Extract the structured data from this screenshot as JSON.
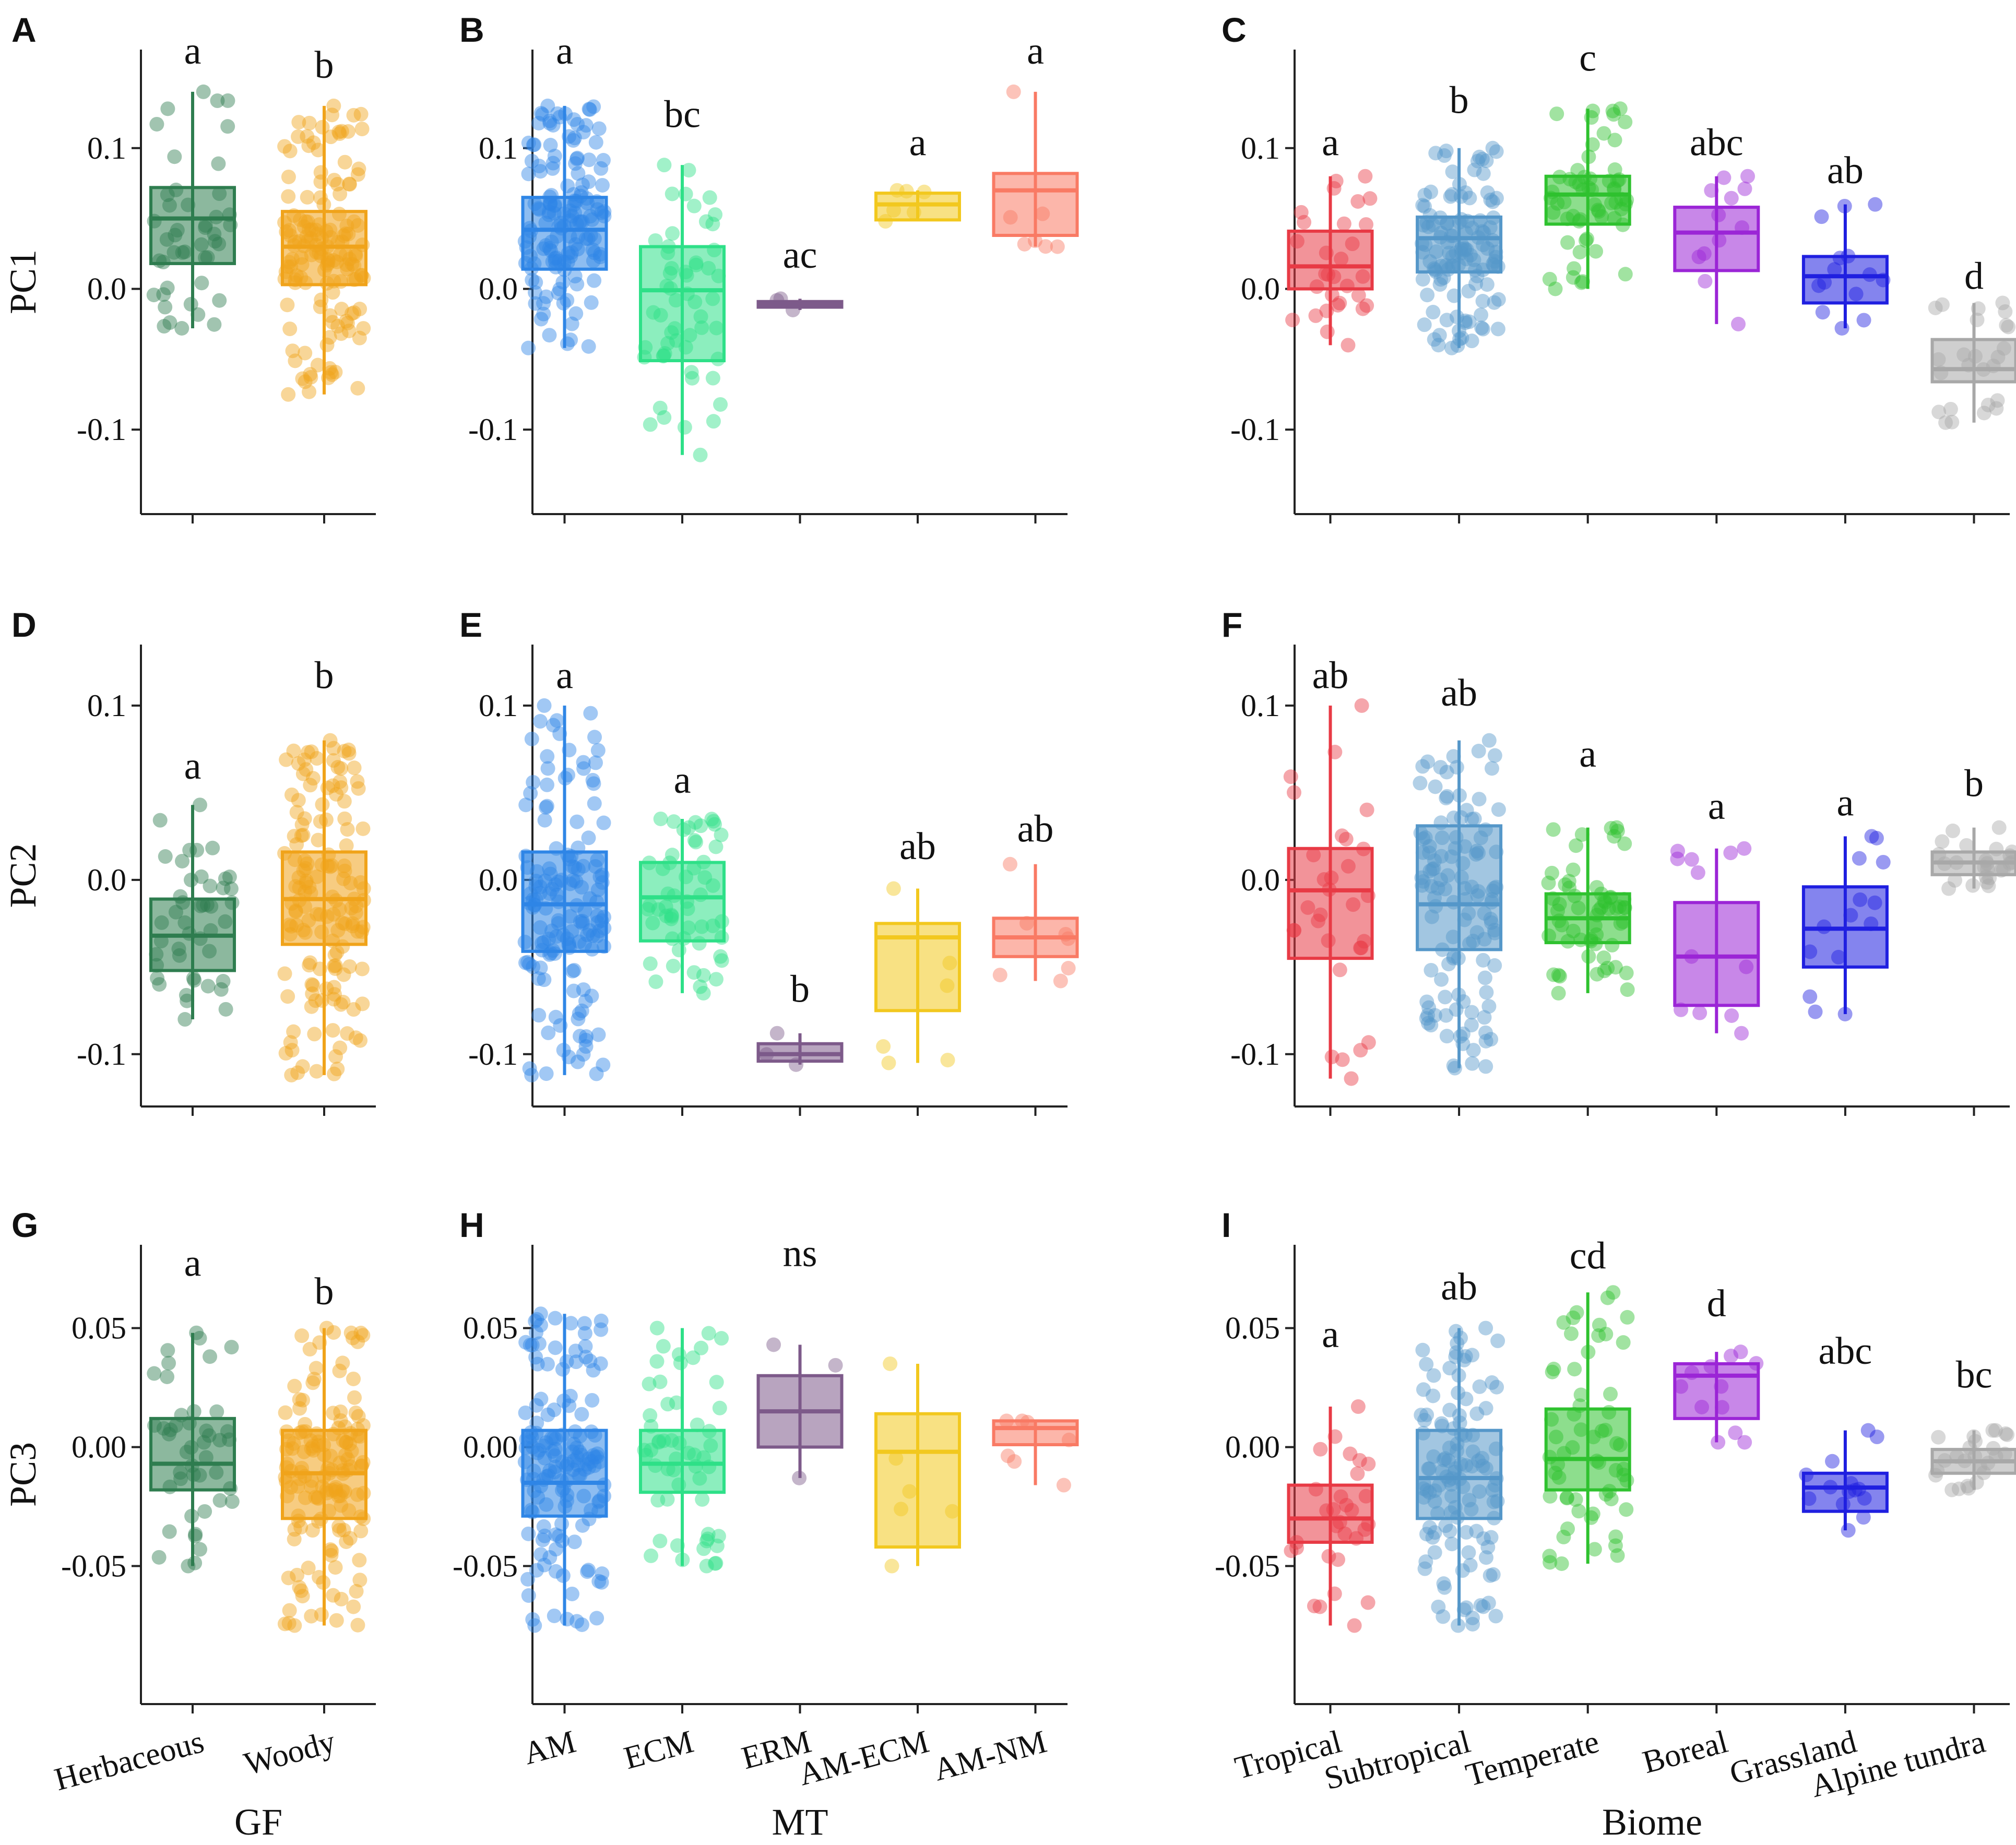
{
  "figure": {
    "type": "box-jitter panel grid"
  },
  "chart_data": [
    {
      "type": "box",
      "panel": "A",
      "ylabel": "PC1",
      "xlabel": "",
      "ylim": [
        -0.16,
        0.17
      ],
      "yticks": [
        -0.1,
        0.0,
        0.1
      ],
      "ytick_labels": [
        "-0.1",
        "0.0",
        "0.1"
      ],
      "categories": [
        "Herbaceous",
        "Woody"
      ],
      "colors": [
        "#2e7d4f",
        "#f0a31a"
      ],
      "boxes": [
        {
          "q1": 0.018,
          "median": 0.05,
          "q3": 0.072,
          "lower": -0.028,
          "upper": 0.14
        },
        {
          "q1": 0.003,
          "median": 0.03,
          "q3": 0.055,
          "lower": -0.075,
          "upper": 0.13
        }
      ],
      "letters": [
        "a",
        "b"
      ],
      "letter_y": [
        0.16,
        0.15
      ],
      "jitter_n": [
        45,
        150
      ]
    },
    {
      "type": "box",
      "panel": "B",
      "ylabel": "",
      "xlabel": "",
      "ylim": [
        -0.16,
        0.17
      ],
      "yticks": [
        -0.1,
        0.0,
        0.1
      ],
      "ytick_labels": [
        "-0.1",
        "0.0",
        "0.1"
      ],
      "categories": [
        "AM",
        "ECM",
        "ERM",
        "AM-ECM",
        "AM-NM"
      ],
      "colors": [
        "#2f86e6",
        "#2ee088",
        "#7d5a8a",
        "#f2c81e",
        "#f97a64"
      ],
      "boxes": [
        {
          "q1": 0.014,
          "median": 0.042,
          "q3": 0.065,
          "lower": -0.042,
          "upper": 0.13
        },
        {
          "q1": -0.051,
          "median": -0.001,
          "q3": 0.03,
          "lower": -0.118,
          "upper": 0.088
        },
        {
          "q1": -0.013,
          "median": -0.011,
          "q3": -0.009,
          "lower": -0.015,
          "upper": -0.007
        },
        {
          "q1": 0.049,
          "median": 0.06,
          "q3": 0.068,
          "lower": 0.048,
          "upper": 0.07
        },
        {
          "q1": 0.038,
          "median": 0.07,
          "q3": 0.082,
          "lower": 0.03,
          "upper": 0.14
        }
      ],
      "letters": [
        "a",
        "bc",
        "ac",
        "a",
        "a"
      ],
      "letter_y": [
        0.16,
        0.115,
        0.015,
        0.095,
        0.16
      ],
      "jitter_n": [
        150,
        55,
        3,
        6,
        7
      ]
    },
    {
      "type": "box",
      "panel": "C",
      "ylabel": "",
      "xlabel": "",
      "ylim": [
        -0.16,
        0.17
      ],
      "yticks": [
        -0.1,
        0.0,
        0.1
      ],
      "ytick_labels": [
        "-0.1",
        "0.0",
        "0.1"
      ],
      "categories": [
        "Tropical",
        "Subtropical",
        "Temperate",
        "Boreal",
        "Grassland",
        "Alpine tundra"
      ],
      "colors": [
        "#e83a45",
        "#5597c9",
        "#2fc22f",
        "#9b25d6",
        "#1f1fe0",
        "#a8a8a8"
      ],
      "boxes": [
        {
          "q1": 0.0,
          "median": 0.016,
          "q3": 0.041,
          "lower": -0.04,
          "upper": 0.08
        },
        {
          "q1": 0.012,
          "median": 0.036,
          "q3": 0.051,
          "lower": -0.042,
          "upper": 0.1
        },
        {
          "q1": 0.046,
          "median": 0.067,
          "q3": 0.08,
          "lower": 0.0,
          "upper": 0.128
        },
        {
          "q1": 0.013,
          "median": 0.04,
          "q3": 0.058,
          "lower": -0.025,
          "upper": 0.08
        },
        {
          "q1": -0.01,
          "median": 0.009,
          "q3": 0.023,
          "lower": -0.028,
          "upper": 0.06
        },
        {
          "q1": -0.066,
          "median": -0.057,
          "q3": -0.036,
          "lower": -0.095,
          "upper": -0.01
        }
      ],
      "letters": [
        "a",
        "b",
        "c",
        "abc",
        "ab",
        "d"
      ],
      "letter_y": [
        0.095,
        0.125,
        0.155,
        0.095,
        0.075,
        0.0
      ],
      "jitter_n": [
        30,
        120,
        60,
        12,
        14,
        25
      ]
    },
    {
      "type": "box",
      "panel": "D",
      "ylabel": "PC2",
      "xlabel": "",
      "ylim": [
        -0.13,
        0.135
      ],
      "yticks": [
        -0.1,
        0.0,
        0.1
      ],
      "ytick_labels": [
        "-0.1",
        "0.0",
        "0.1"
      ],
      "categories": [
        "Herbaceous",
        "Woody"
      ],
      "colors": [
        "#2e7d4f",
        "#f0a31a"
      ],
      "boxes": [
        {
          "q1": -0.052,
          "median": -0.032,
          "q3": -0.011,
          "lower": -0.08,
          "upper": 0.043
        },
        {
          "q1": -0.037,
          "median": -0.011,
          "q3": 0.016,
          "lower": -0.112,
          "upper": 0.08
        }
      ],
      "letters": [
        "a",
        "b"
      ],
      "letter_y": [
        0.058,
        0.11
      ],
      "jitter_n": [
        45,
        150
      ]
    },
    {
      "type": "box",
      "panel": "E",
      "ylabel": "",
      "xlabel": "",
      "ylim": [
        -0.13,
        0.135
      ],
      "yticks": [
        -0.1,
        0.0,
        0.1
      ],
      "ytick_labels": [
        "-0.1",
        "0.0",
        "0.1"
      ],
      "categories": [
        "AM",
        "ECM",
        "ERM",
        "AM-ECM",
        "AM-NM"
      ],
      "colors": [
        "#2f86e6",
        "#2ee088",
        "#7d5a8a",
        "#f2c81e",
        "#f97a64"
      ],
      "boxes": [
        {
          "q1": -0.041,
          "median": -0.014,
          "q3": 0.016,
          "lower": -0.112,
          "upper": 0.1
        },
        {
          "q1": -0.035,
          "median": -0.01,
          "q3": 0.01,
          "lower": -0.065,
          "upper": 0.035
        },
        {
          "q1": -0.104,
          "median": -0.1,
          "q3": -0.094,
          "lower": -0.106,
          "upper": -0.088
        },
        {
          "q1": -0.075,
          "median": -0.033,
          "q3": -0.025,
          "lower": -0.105,
          "upper": -0.005
        },
        {
          "q1": -0.044,
          "median": -0.033,
          "q3": -0.022,
          "lower": -0.058,
          "upper": 0.009
        }
      ],
      "letters": [
        "a",
        "a",
        "b",
        "ab",
        "ab"
      ],
      "letter_y": [
        0.11,
        0.05,
        -0.07,
        0.012,
        0.022
      ],
      "jitter_n": [
        150,
        55,
        3,
        6,
        7
      ]
    },
    {
      "type": "box",
      "panel": "F",
      "ylabel": "",
      "xlabel": "",
      "ylim": [
        -0.13,
        0.135
      ],
      "yticks": [
        -0.1,
        0.0,
        0.1
      ],
      "ytick_labels": [
        "-0.1",
        "0.0",
        "0.1"
      ],
      "categories": [
        "Tropical",
        "Subtropical",
        "Temperate",
        "Boreal",
        "Grassland",
        "Alpine tundra"
      ],
      "colors": [
        "#e83a45",
        "#5597c9",
        "#2fc22f",
        "#9b25d6",
        "#1f1fe0",
        "#a8a8a8"
      ],
      "boxes": [
        {
          "q1": -0.045,
          "median": -0.006,
          "q3": 0.018,
          "lower": -0.114,
          "upper": 0.1
        },
        {
          "q1": -0.04,
          "median": -0.014,
          "q3": 0.031,
          "lower": -0.108,
          "upper": 0.08
        },
        {
          "q1": -0.036,
          "median": -0.022,
          "q3": -0.008,
          "lower": -0.065,
          "upper": 0.03
        },
        {
          "q1": -0.072,
          "median": -0.044,
          "q3": -0.013,
          "lower": -0.088,
          "upper": 0.018
        },
        {
          "q1": -0.05,
          "median": -0.028,
          "q3": -0.004,
          "lower": -0.077,
          "upper": 0.025
        },
        {
          "q1": 0.003,
          "median": 0.01,
          "q3": 0.016,
          "lower": -0.005,
          "upper": 0.03
        }
      ],
      "letters": [
        "ab",
        "ab",
        "a",
        "a",
        "a",
        "b"
      ],
      "letter_y": [
        0.11,
        0.1,
        0.065,
        0.035,
        0.037,
        0.048
      ],
      "jitter_n": [
        30,
        120,
        60,
        12,
        14,
        25
      ]
    },
    {
      "type": "box",
      "panel": "G",
      "ylabel": "PC3",
      "xlabel": "GF",
      "ylim": [
        -0.108,
        0.085
      ],
      "yticks": [
        -0.05,
        0.0,
        0.05
      ],
      "ytick_labels": [
        "-0.05",
        "0.00",
        "0.05"
      ],
      "categories": [
        "Herbaceous",
        "Woody"
      ],
      "colors": [
        "#2e7d4f",
        "#f0a31a"
      ],
      "boxes": [
        {
          "q1": -0.018,
          "median": -0.007,
          "q3": 0.012,
          "lower": -0.05,
          "upper": 0.048
        },
        {
          "q1": -0.03,
          "median": -0.011,
          "q3": 0.007,
          "lower": -0.075,
          "upper": 0.05
        }
      ],
      "letters": [
        "a",
        "b"
      ],
      "letter_y": [
        0.072,
        0.06
      ],
      "jitter_n": [
        45,
        150
      ]
    },
    {
      "type": "box",
      "panel": "H",
      "ylabel": "",
      "xlabel": "MT",
      "ylim": [
        -0.108,
        0.085
      ],
      "yticks": [
        -0.05,
        0.0,
        0.05
      ],
      "ytick_labels": [
        "-0.05",
        "0.00",
        "0.05"
      ],
      "categories": [
        "AM",
        "ECM",
        "ERM",
        "AM-ECM",
        "AM-NM"
      ],
      "colors": [
        "#2f86e6",
        "#2ee088",
        "#7d5a8a",
        "#f2c81e",
        "#f97a64"
      ],
      "boxes": [
        {
          "q1": -0.029,
          "median": -0.015,
          "q3": 0.007,
          "lower": -0.075,
          "upper": 0.056
        },
        {
          "q1": -0.019,
          "median": -0.007,
          "q3": 0.007,
          "lower": -0.05,
          "upper": 0.05
        },
        {
          "q1": 0.0,
          "median": 0.015,
          "q3": 0.03,
          "lower": -0.013,
          "upper": 0.043
        },
        {
          "q1": -0.042,
          "median": -0.002,
          "q3": 0.014,
          "lower": -0.05,
          "upper": 0.035
        },
        {
          "q1": 0.001,
          "median": 0.008,
          "q3": 0.011,
          "lower": -0.016,
          "upper": 0.011
        }
      ],
      "letters": [
        "",
        "",
        "ns",
        "",
        ""
      ],
      "letter_y": [
        0,
        0,
        0.076,
        0,
        0
      ],
      "jitter_n": [
        150,
        55,
        3,
        6,
        7
      ]
    },
    {
      "type": "box",
      "panel": "I",
      "ylabel": "",
      "xlabel": "Biome",
      "ylim": [
        -0.108,
        0.085
      ],
      "yticks": [
        -0.05,
        0.0,
        0.05
      ],
      "ytick_labels": [
        "-0.05",
        "0.00",
        "0.05"
      ],
      "categories": [
        "Tropical",
        "Subtropical",
        "Temperate",
        "Boreal",
        "Grassland",
        "Alpine tundra"
      ],
      "colors": [
        "#e83a45",
        "#5597c9",
        "#2fc22f",
        "#9b25d6",
        "#1f1fe0",
        "#a8a8a8"
      ],
      "boxes": [
        {
          "q1": -0.04,
          "median": -0.03,
          "q3": -0.016,
          "lower": -0.075,
          "upper": 0.017
        },
        {
          "q1": -0.03,
          "median": -0.013,
          "q3": 0.007,
          "lower": -0.075,
          "upper": 0.05
        },
        {
          "q1": -0.018,
          "median": -0.005,
          "q3": 0.016,
          "lower": -0.049,
          "upper": 0.065
        },
        {
          "q1": 0.012,
          "median": 0.03,
          "q3": 0.035,
          "lower": 0.002,
          "upper": 0.04
        },
        {
          "q1": -0.027,
          "median": -0.017,
          "q3": -0.011,
          "lower": -0.035,
          "upper": 0.007
        },
        {
          "q1": -0.011,
          "median": -0.006,
          "q3": -0.001,
          "lower": -0.018,
          "upper": 0.007
        }
      ],
      "letters": [
        "a",
        "ab",
        "cd",
        "d",
        "abc",
        "bc"
      ],
      "letter_y": [
        0.042,
        0.062,
        0.075,
        0.055,
        0.035,
        0.025
      ],
      "jitter_n": [
        30,
        120,
        60,
        12,
        14,
        25
      ]
    }
  ]
}
